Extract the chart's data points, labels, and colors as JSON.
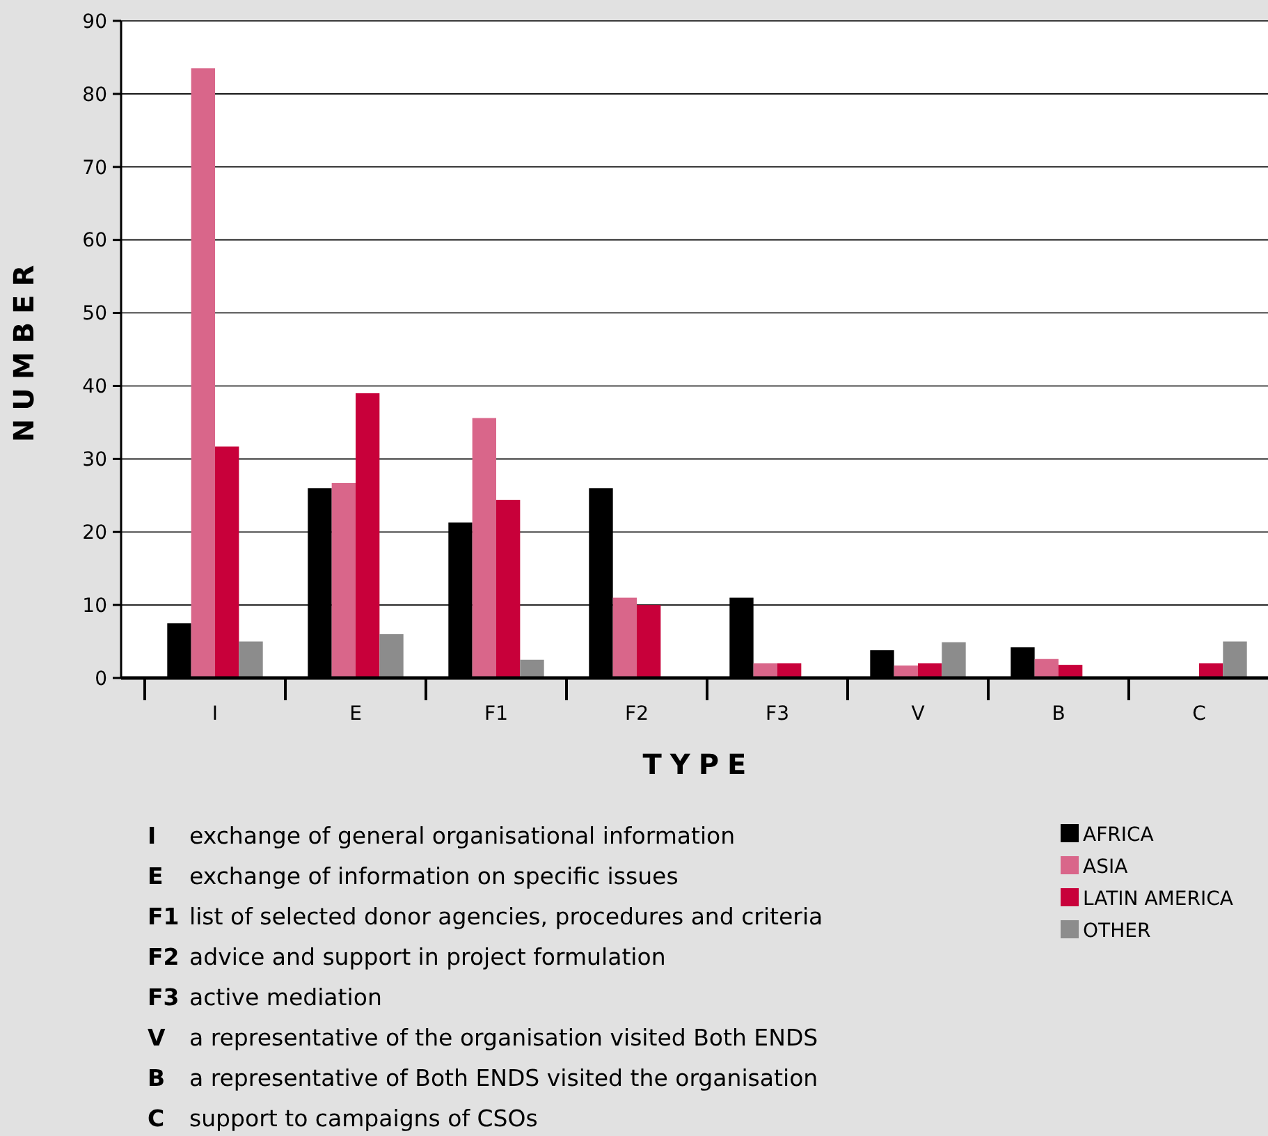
{
  "chart_data": {
    "type": "bar",
    "xlabel": "TYPE",
    "ylabel": "NUMBER",
    "categories": [
      "I",
      "E",
      "F1",
      "F2",
      "F3",
      "V",
      "B",
      "C"
    ],
    "series": [
      {
        "name": "AFRICA",
        "color": "#000000",
        "values": [
          7.5,
          26,
          21.3,
          26,
          11,
          3.8,
          4.2,
          0
        ]
      },
      {
        "name": "ASIA",
        "color": "#d9668a",
        "values": [
          83.5,
          26.7,
          35.6,
          11,
          2,
          1.7,
          2.6,
          0
        ]
      },
      {
        "name": "LATIN AMERICA",
        "color": "#c8003a",
        "values": [
          31.7,
          39,
          24.4,
          10,
          2,
          2,
          1.8,
          2
        ]
      },
      {
        "name": "OTHER",
        "color": "#8c8c8c",
        "values": [
          5,
          6,
          2.5,
          0,
          0,
          4.9,
          0,
          5
        ]
      }
    ],
    "ylim": [
      0,
      90
    ],
    "yticks": [
      0,
      10,
      20,
      30,
      40,
      50,
      60,
      70,
      80,
      90
    ],
    "grid": "y",
    "legend": "bottom right",
    "annotations": [
      "I exchange of general organisational information",
      "E exchange of information on specific issues",
      "F1 list of selected donor agencies, procedures and criteria",
      "F2 advice and support in project formulation",
      "F3 active mediation",
      "V a representative of the organisation visited Both ENDS",
      "B a representative of Both ENDS visited the organisation",
      "C support to campaigns of CSOs"
    ]
  }
}
